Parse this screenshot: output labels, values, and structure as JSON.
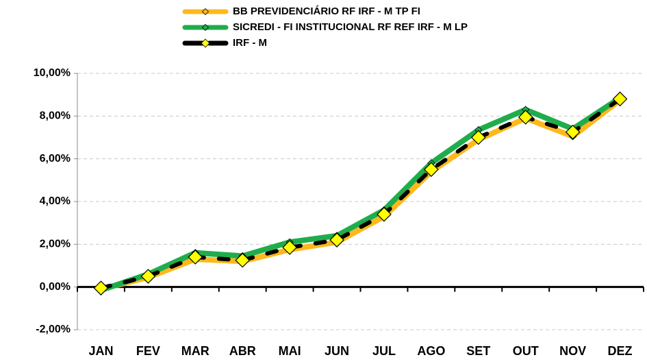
{
  "chart_data": {
    "type": "line",
    "categories": [
      "JAN",
      "FEV",
      "MAR",
      "ABR",
      "MAI",
      "JUN",
      "JUL",
      "AGO",
      "SET",
      "OUT",
      "NOV",
      "DEZ"
    ],
    "series": [
      {
        "name": "BB PREVIDENCIÁRIO RF IRF - M TP FI",
        "color": "#ffb81c",
        "line_style": "solid",
        "marker_color": "#ffb81c",
        "values": [
          -0.1,
          0.45,
          1.3,
          1.2,
          1.75,
          2.1,
          3.3,
          5.4,
          6.9,
          7.9,
          7.05,
          8.75
        ]
      },
      {
        "name": "SICREDI - FI INSTITUCIONAL RF REF IRF - M LP",
        "color": "#1fad4b",
        "line_style": "solid",
        "marker_color": "#1fad4b",
        "values": [
          -0.15,
          0.6,
          1.6,
          1.45,
          2.1,
          2.4,
          3.6,
          5.8,
          7.35,
          8.3,
          7.4,
          8.85
        ]
      },
      {
        "name": "IRF - M",
        "color": "#000000",
        "line_style": "dashed",
        "marker_color": "#ffff00",
        "values": [
          -0.05,
          0.5,
          1.4,
          1.25,
          1.85,
          2.2,
          3.4,
          5.5,
          7.0,
          7.95,
          7.25,
          8.8
        ]
      }
    ],
    "ylim": [
      -2,
      10
    ],
    "yticks": [
      {
        "value": -2,
        "label": "-2,00%"
      },
      {
        "value": 0,
        "label": "0,00%"
      },
      {
        "value": 2,
        "label": "2,00%"
      },
      {
        "value": 4,
        "label": "4,00%"
      },
      {
        "value": 6,
        "label": "6,00%"
      },
      {
        "value": 8,
        "label": "8,00%"
      },
      {
        "value": 10,
        "label": "10,00%"
      }
    ],
    "grid": true,
    "legend": "top"
  }
}
